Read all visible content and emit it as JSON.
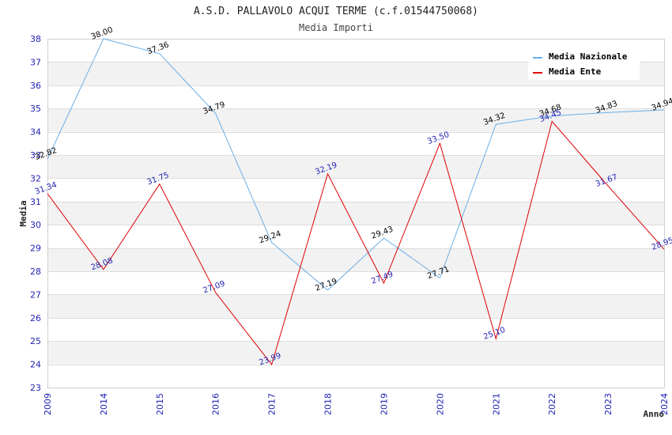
{
  "chart_data": {
    "type": "line",
    "title": "A.S.D. PALLAVOLO ACQUI TERME (c.f.01544750068)",
    "subtitle": "Media Importi",
    "xlabel": "Anno",
    "ylabel": "Media",
    "categories": [
      "2009",
      "2014",
      "2015",
      "2016",
      "2017",
      "2018",
      "2019",
      "2020",
      "2021",
      "2022",
      "2023",
      "2024"
    ],
    "ylim": [
      23,
      38
    ],
    "yticks": [
      23,
      24,
      25,
      26,
      27,
      28,
      29,
      30,
      31,
      32,
      33,
      34,
      35,
      36,
      37,
      38
    ],
    "grid": true,
    "legend_position": "top-right",
    "series": [
      {
        "name": "Media Nazionale",
        "color": "#6aaee8",
        "label_color": "#000000",
        "values": [
          32.82,
          38.0,
          37.36,
          34.79,
          29.24,
          27.19,
          29.43,
          27.71,
          34.32,
          34.68,
          34.83,
          34.94
        ],
        "labels": [
          "32.82",
          "38.00",
          "37.36",
          "34.79",
          "29.24",
          "27.19",
          "29.43",
          "27.71",
          "34.32",
          "34.68",
          "34.83",
          "34.94"
        ]
      },
      {
        "name": "Media Ente",
        "color": "#e00000",
        "label_color": "#1f1fb4",
        "values": [
          31.34,
          28.08,
          31.75,
          27.09,
          23.99,
          32.19,
          27.49,
          33.5,
          25.1,
          34.45,
          31.67,
          28.95
        ],
        "labels": [
          "31.34",
          "28.08",
          "31.75",
          "27.09",
          "23.99",
          "32.19",
          "27.49",
          "33.50",
          "25.10",
          "34.45",
          "31.67",
          "28.95"
        ]
      }
    ]
  }
}
